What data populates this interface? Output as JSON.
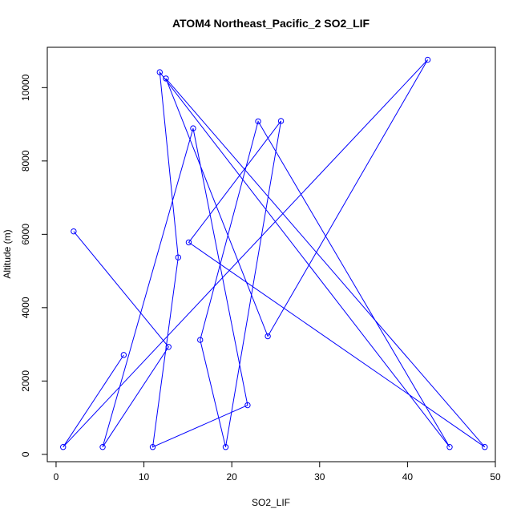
{
  "chart_data": {
    "type": "line",
    "title": "ATOM4 Northeast_Pacific_2 SO2_LIF",
    "xlabel": "SO2_LIF",
    "ylabel": "Altitude (m)",
    "xlim": [
      -1,
      50
    ],
    "ylim": [
      -200,
      11100
    ],
    "x_ticks": [
      0,
      10,
      20,
      30,
      40,
      50
    ],
    "y_ticks": [
      0,
      2000,
      4000,
      6000,
      8000,
      10000
    ],
    "grid": false,
    "legend": "none",
    "series": [
      {
        "color": "#0000ff",
        "marker": "open-circle",
        "points": [
          {
            "x": 2.0,
            "y": 6080
          },
          {
            "x": 12.8,
            "y": 2930
          },
          {
            "x": 5.3,
            "y": 200
          },
          {
            "x": 15.6,
            "y": 8890
          },
          {
            "x": 21.8,
            "y": 1340
          },
          {
            "x": 11.0,
            "y": 200
          },
          {
            "x": 13.9,
            "y": 5370
          },
          {
            "x": 11.8,
            "y": 10420
          },
          {
            "x": 44.8,
            "y": 200
          },
          {
            "x": 23.0,
            "y": 9080
          },
          {
            "x": 16.4,
            "y": 3120
          },
          {
            "x": 19.3,
            "y": 200
          },
          {
            "x": 25.6,
            "y": 9090
          },
          {
            "x": 15.1,
            "y": 5780
          },
          {
            "x": 48.8,
            "y": 200
          },
          {
            "x": 12.5,
            "y": 10250
          },
          {
            "x": 24.1,
            "y": 3220
          },
          {
            "x": 42.3,
            "y": 10760
          },
          {
            "x": 0.8,
            "y": 200
          },
          {
            "x": 7.7,
            "y": 2710
          }
        ]
      }
    ]
  }
}
